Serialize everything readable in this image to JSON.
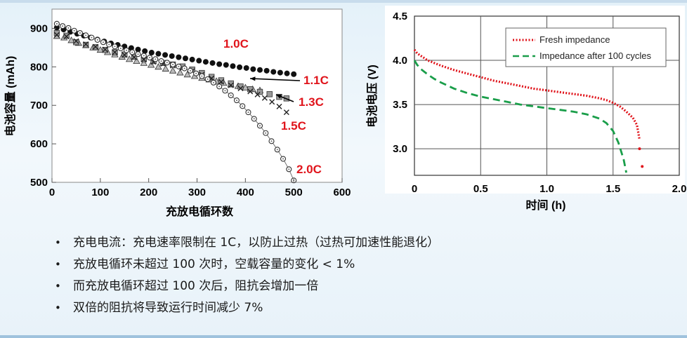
{
  "charts": [
    {
      "id": "left",
      "type": "scatter",
      "xlabel": "充放电循环数",
      "ylabel": "电池容量 (mAh)",
      "xlim": [
        0,
        600
      ],
      "ylim": [
        500,
        950
      ],
      "xticks": [
        0,
        100,
        200,
        300,
        400,
        500,
        600
      ],
      "yticks": [
        500,
        600,
        700,
        800,
        900
      ],
      "series": [
        {
          "name": "1.0C",
          "label_color": "#e0141b",
          "marker": "filled-circle",
          "x": [
            10,
            24,
            38,
            52,
            66,
            80,
            94,
            108,
            122,
            136,
            150,
            164,
            178,
            192,
            206,
            220,
            234,
            248,
            262,
            276,
            290,
            304,
            318,
            332,
            346,
            360,
            374,
            388,
            402,
            416,
            430,
            444,
            458,
            472,
            486,
            500
          ],
          "y": [
            902,
            897,
            891,
            886,
            881,
            876,
            871,
            866,
            861,
            857,
            853,
            849,
            845,
            841,
            837,
            834,
            831,
            828,
            825,
            822,
            819,
            816,
            813,
            810,
            807,
            805,
            802,
            799,
            797,
            794,
            792,
            790,
            787,
            785,
            783,
            781
          ]
        },
        {
          "name": "1.1C",
          "label_color": "#e0141b",
          "marker": "triangle",
          "x": [
            10,
            25,
            40,
            55,
            70,
            85,
            100,
            115,
            130,
            145,
            160,
            175,
            190,
            205,
            220,
            235,
            250,
            265,
            280,
            295,
            310,
            325,
            340,
            355,
            370,
            385,
            400,
            415,
            430
          ],
          "y": [
            880,
            876,
            869,
            862,
            856,
            850,
            844,
            838,
            832,
            826,
            820,
            815,
            810,
            805,
            800,
            795,
            790,
            785,
            780,
            776,
            771,
            767,
            763,
            758,
            754,
            750,
            746,
            742,
            739
          ]
        },
        {
          "name": "1.3C",
          "label_color": "#e0141b",
          "marker": "square",
          "x": [
            10,
            30,
            50,
            70,
            90,
            110,
            130,
            150,
            170,
            190,
            210,
            230,
            250,
            270,
            290,
            310,
            330,
            350,
            370,
            390,
            410,
            430,
            450,
            470,
            485
          ],
          "y": [
            888,
            881,
            864,
            857,
            851,
            844,
            838,
            832,
            826,
            820,
            815,
            810,
            806,
            801,
            793,
            784,
            774,
            765,
            757,
            749,
            742,
            735,
            729,
            722,
            718
          ]
        },
        {
          "name": "1.5C",
          "label_color": "#e0141b",
          "marker": "x",
          "x": [
            10,
            30,
            50,
            70,
            90,
            110,
            130,
            150,
            170,
            190,
            210,
            230,
            250,
            270,
            290,
            310,
            330,
            350,
            370,
            390,
            410,
            425,
            440,
            455,
            470,
            485
          ],
          "y": [
            883,
            879,
            867,
            859,
            852,
            845,
            838,
            831,
            825,
            819,
            813,
            808,
            803,
            797,
            789,
            780,
            770,
            761,
            752,
            744,
            736,
            728,
            719,
            709,
            697,
            682
          ]
        },
        {
          "name": "2.0C",
          "label_color": "#e0141b",
          "marker": "open-circle",
          "x": [
            10,
            22,
            34,
            46,
            58,
            70,
            82,
            94,
            106,
            118,
            130,
            142,
            154,
            166,
            178,
            190,
            202,
            214,
            226,
            238,
            250,
            262,
            274,
            286,
            298,
            310,
            322,
            334,
            346,
            358,
            370,
            382,
            394,
            406,
            418,
            430,
            442,
            454,
            466,
            478,
            490,
            500
          ],
          "y": [
            912,
            906,
            901,
            894,
            888,
            882,
            876,
            870,
            864,
            858,
            853,
            848,
            843,
            838,
            833,
            829,
            824,
            820,
            815,
            811,
            806,
            801,
            796,
            790,
            783,
            776,
            768,
            759,
            749,
            738,
            726,
            713,
            698,
            682,
            665,
            647,
            628,
            607,
            585,
            561,
            534,
            505
          ]
        }
      ]
    },
    {
      "id": "right",
      "type": "line",
      "xlabel": "时间 (h)",
      "ylabel": "电池电压 (V)",
      "xlim": [
        0,
        2.0
      ],
      "ylim": [
        2.7,
        4.5
      ],
      "xticks": [
        0,
        0.5,
        1.0,
        1.5,
        2.0
      ],
      "xtick_labels": [
        "0",
        "0.5",
        "1.0",
        "1.5",
        "2.0"
      ],
      "yticks": [
        3.0,
        3.5,
        4.0,
        4.5
      ],
      "ytick_labels": [
        "3.0",
        "3.5",
        "4.0",
        "4.5"
      ],
      "legend_position": "top-right",
      "series": [
        {
          "name": "Fresh impedance",
          "color": "#e0141b",
          "style": "dotted",
          "x": [
            0,
            0.02,
            0.05,
            0.1,
            0.2,
            0.3,
            0.4,
            0.5,
            0.6,
            0.7,
            0.8,
            0.9,
            1.0,
            1.1,
            1.2,
            1.3,
            1.4,
            1.45,
            1.5,
            1.55,
            1.6,
            1.65,
            1.68,
            1.7
          ],
          "y": [
            4.12,
            4.08,
            4.05,
            4.0,
            3.94,
            3.89,
            3.85,
            3.81,
            3.77,
            3.74,
            3.71,
            3.68,
            3.66,
            3.64,
            3.62,
            3.6,
            3.57,
            3.55,
            3.52,
            3.48,
            3.42,
            3.35,
            3.27,
            3.1
          ]
        },
        {
          "name": "Impedance after 100 cycles",
          "color": "#1a9e4a",
          "style": "dashed",
          "x": [
            0,
            0.02,
            0.05,
            0.1,
            0.15,
            0.2,
            0.3,
            0.4,
            0.5,
            0.6,
            0.7,
            0.8,
            0.9,
            1.0,
            1.1,
            1.2,
            1.3,
            1.4,
            1.45,
            1.5,
            1.54,
            1.58,
            1.6
          ],
          "y": [
            4.0,
            3.95,
            3.9,
            3.84,
            3.79,
            3.75,
            3.68,
            3.63,
            3.59,
            3.56,
            3.53,
            3.5,
            3.48,
            3.46,
            3.44,
            3.42,
            3.39,
            3.34,
            3.29,
            3.2,
            3.07,
            2.88,
            2.73
          ]
        }
      ],
      "extra_points": {
        "x": [
          1.7,
          1.72
        ],
        "y": [
          3.0,
          2.8
        ]
      }
    }
  ],
  "bullets": [
    "充电电流：充电速率限制在 1C，以防止过热（过热可加速性能退化）",
    "充放电循环未超过 100 次时，空载容量的变化 < 1%",
    "而充放电循环超过 100 次后，阻抗会增加一倍",
    "双倍的阻抗将导致运行时间减少 7%"
  ],
  "bullet_symbol": "•"
}
